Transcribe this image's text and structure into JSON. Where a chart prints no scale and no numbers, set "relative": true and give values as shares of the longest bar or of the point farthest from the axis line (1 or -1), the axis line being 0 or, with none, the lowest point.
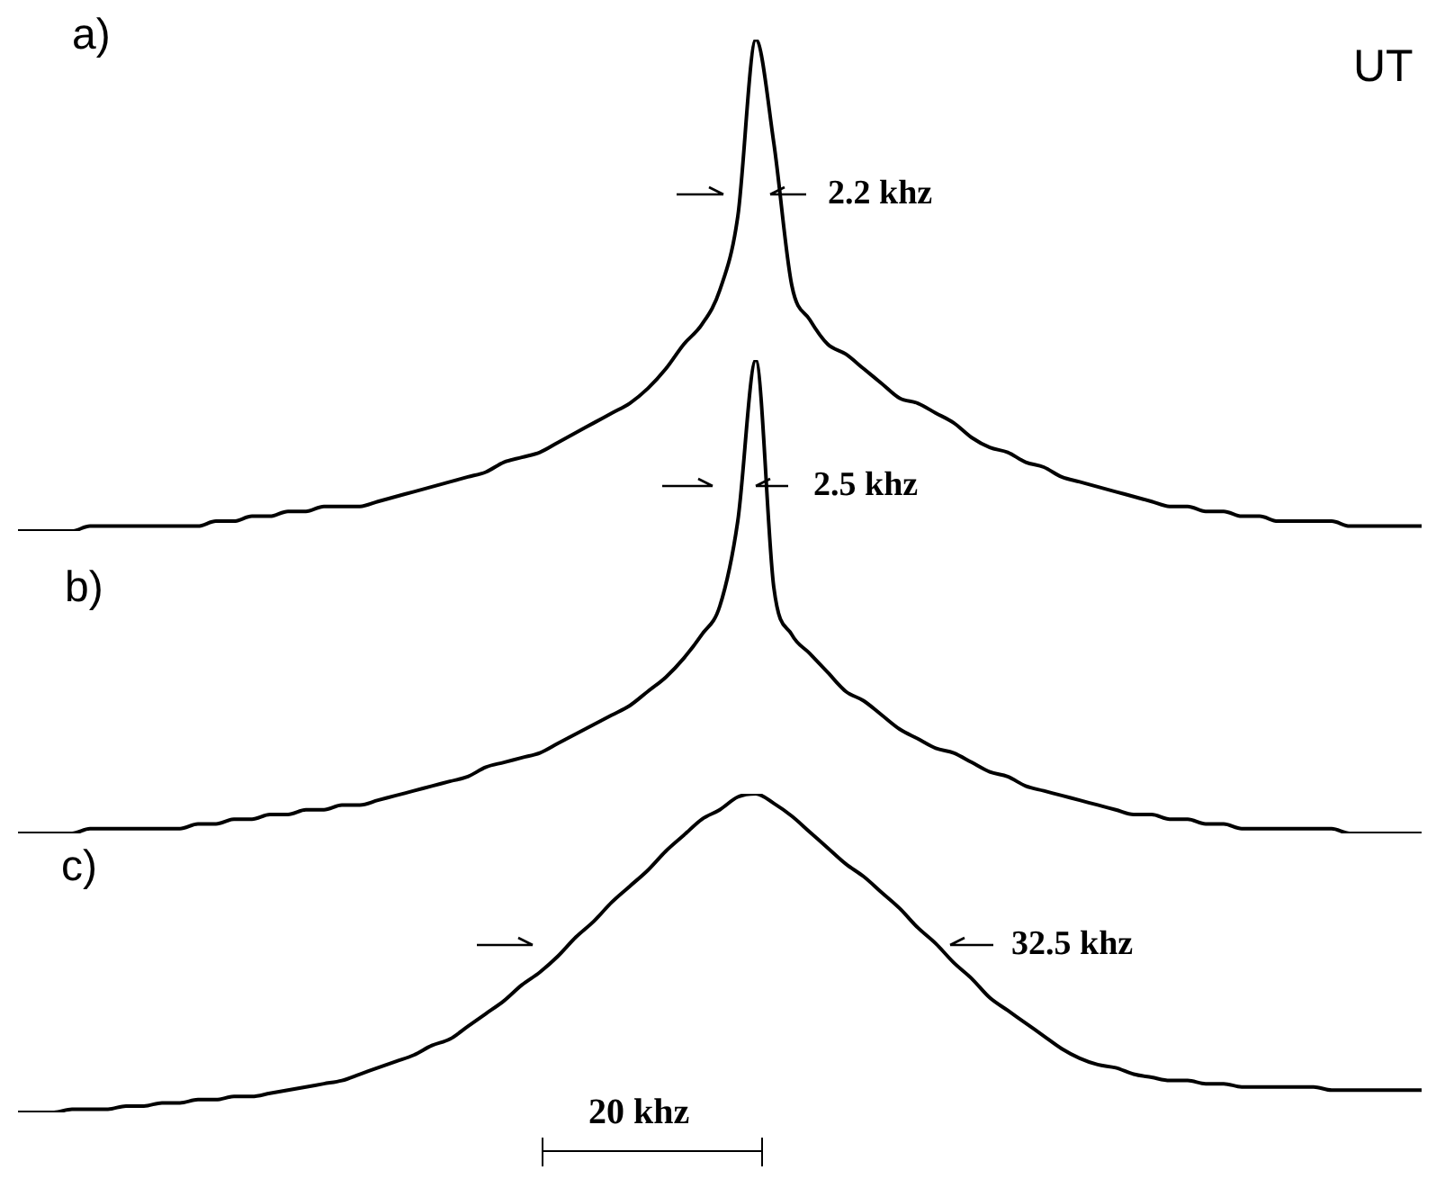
{
  "chart_data": [
    {
      "type": "line",
      "relative": true,
      "color": "#000000",
      "categories": [
        null,
        null,
        null,
        null,
        null,
        null,
        null,
        null,
        null,
        null,
        null,
        null,
        null,
        null,
        null,
        null,
        null,
        null,
        null,
        null,
        null,
        null,
        null,
        null,
        null,
        null,
        null,
        null,
        null,
        null,
        null,
        null,
        null,
        null,
        null,
        null,
        null,
        null,
        null,
        null,
        null,
        null,
        null,
        null,
        null,
        null,
        null,
        null,
        null,
        null,
        null,
        null,
        null,
        null,
        null,
        null,
        null,
        null,
        null,
        null,
        null,
        null,
        null,
        null,
        null,
        null,
        null,
        null,
        null,
        null,
        null,
        null,
        null,
        null,
        null,
        null,
        null,
        null,
        null
      ],
      "values": [
        0,
        0,
        0,
        0,
        0.01,
        0.01,
        0.01,
        0.01,
        0.01,
        0.01,
        0.01,
        0.02,
        0.02,
        0.03,
        0.03,
        0.04,
        0.04,
        0.05,
        0.05,
        0.05,
        0.06,
        0.07,
        0.08,
        0.09,
        0.1,
        0.11,
        0.12,
        0.14,
        0.15,
        0.16,
        0.18,
        0.2,
        0.22,
        0.24,
        0.26,
        0.29,
        0.33,
        0.38,
        0.42,
        0.49,
        0.64,
        1,
        0.79,
        0.5,
        0.43,
        0.38,
        0.36,
        0.33,
        0.3,
        0.27,
        0.26,
        0.24,
        0.22,
        0.19,
        0.17,
        0.16,
        0.14,
        0.13,
        0.11,
        0.1,
        0.09,
        0.08,
        0.07,
        0.06,
        0.05,
        0.05,
        0.04,
        0.04,
        0.03,
        0.03,
        0.02,
        0.02,
        0.02,
        0.02,
        0.01,
        0.01,
        0.01,
        0.01,
        0.01
      ],
      "annotations": [
        "a)",
        "UT",
        "2.2 khz"
      ]
    },
    {
      "type": "line",
      "relative": true,
      "color": "#000000",
      "categories": [
        null,
        null,
        null,
        null,
        null,
        null,
        null,
        null,
        null,
        null,
        null,
        null,
        null,
        null,
        null,
        null,
        null,
        null,
        null,
        null,
        null,
        null,
        null,
        null,
        null,
        null,
        null,
        null,
        null,
        null,
        null,
        null,
        null,
        null,
        null,
        null,
        null,
        null,
        null,
        null,
        null,
        null,
        null,
        null,
        null,
        null,
        null,
        null,
        null,
        null,
        null,
        null,
        null,
        null,
        null,
        null,
        null,
        null,
        null,
        null,
        null,
        null,
        null,
        null,
        null,
        null,
        null,
        null,
        null,
        null,
        null,
        null,
        null,
        null,
        null,
        null,
        null,
        null,
        null
      ],
      "values": [
        0,
        0,
        0,
        0,
        0.01,
        0.01,
        0.01,
        0.01,
        0.01,
        0.01,
        0.02,
        0.02,
        0.03,
        0.03,
        0.04,
        0.04,
        0.05,
        0.05,
        0.06,
        0.06,
        0.07,
        0.08,
        0.09,
        0.1,
        0.11,
        0.12,
        0.14,
        0.15,
        0.16,
        0.17,
        0.19,
        0.21,
        0.23,
        0.25,
        0.27,
        0.3,
        0.33,
        0.37,
        0.42,
        0.48,
        0.66,
        1,
        0.52,
        0.42,
        0.38,
        0.34,
        0.3,
        0.28,
        0.25,
        0.22,
        0.2,
        0.18,
        0.17,
        0.15,
        0.13,
        0.12,
        0.1,
        0.09,
        0.08,
        0.07,
        0.06,
        0.05,
        0.04,
        0.04,
        0.03,
        0.03,
        0.02,
        0.02,
        0.01,
        0.01,
        0.01,
        0.01,
        0.01,
        0.01,
        0,
        0,
        0,
        0,
        0
      ],
      "annotations": [
        "b)",
        "2.5 khz"
      ]
    },
    {
      "type": "line",
      "relative": true,
      "color": "#000000",
      "categories": [
        null,
        null,
        null,
        null,
        null,
        null,
        null,
        null,
        null,
        null,
        null,
        null,
        null,
        null,
        null,
        null,
        null,
        null,
        null,
        null,
        null,
        null,
        null,
        null,
        null,
        null,
        null,
        null,
        null,
        null,
        null,
        null,
        null,
        null,
        null,
        null,
        null,
        null,
        null,
        null,
        null,
        null,
        null,
        null,
        null,
        null,
        null,
        null,
        null,
        null,
        null,
        null,
        null,
        null,
        null,
        null,
        null,
        null,
        null,
        null,
        null,
        null,
        null,
        null,
        null,
        null,
        null,
        null,
        null,
        null,
        null,
        null,
        null,
        null,
        null,
        null,
        null,
        null,
        null
      ],
      "values": [
        0,
        0,
        0,
        0.01,
        0.01,
        0.01,
        0.02,
        0.02,
        0.03,
        0.03,
        0.04,
        0.04,
        0.05,
        0.05,
        0.06,
        0.07,
        0.08,
        0.09,
        0.1,
        0.12,
        0.14,
        0.16,
        0.18,
        0.21,
        0.23,
        0.27,
        0.31,
        0.35,
        0.4,
        0.44,
        0.49,
        0.55,
        0.6,
        0.66,
        0.71,
        0.76,
        0.82,
        0.87,
        0.92,
        0.95,
        0.99,
        1,
        0.97,
        0.93,
        0.88,
        0.83,
        0.78,
        0.74,
        0.69,
        0.64,
        0.58,
        0.53,
        0.47,
        0.42,
        0.36,
        0.32,
        0.28,
        0.24,
        0.2,
        0.17,
        0.15,
        0.14,
        0.12,
        0.11,
        0.1,
        0.1,
        0.09,
        0.09,
        0.08,
        0.08,
        0.08,
        0.08,
        0.08,
        0.07,
        0.07,
        0.07,
        0.07,
        0.07,
        0.07
      ],
      "annotations": [
        "c)",
        "32.5 khz",
        "20 khz"
      ]
    }
  ]
}
